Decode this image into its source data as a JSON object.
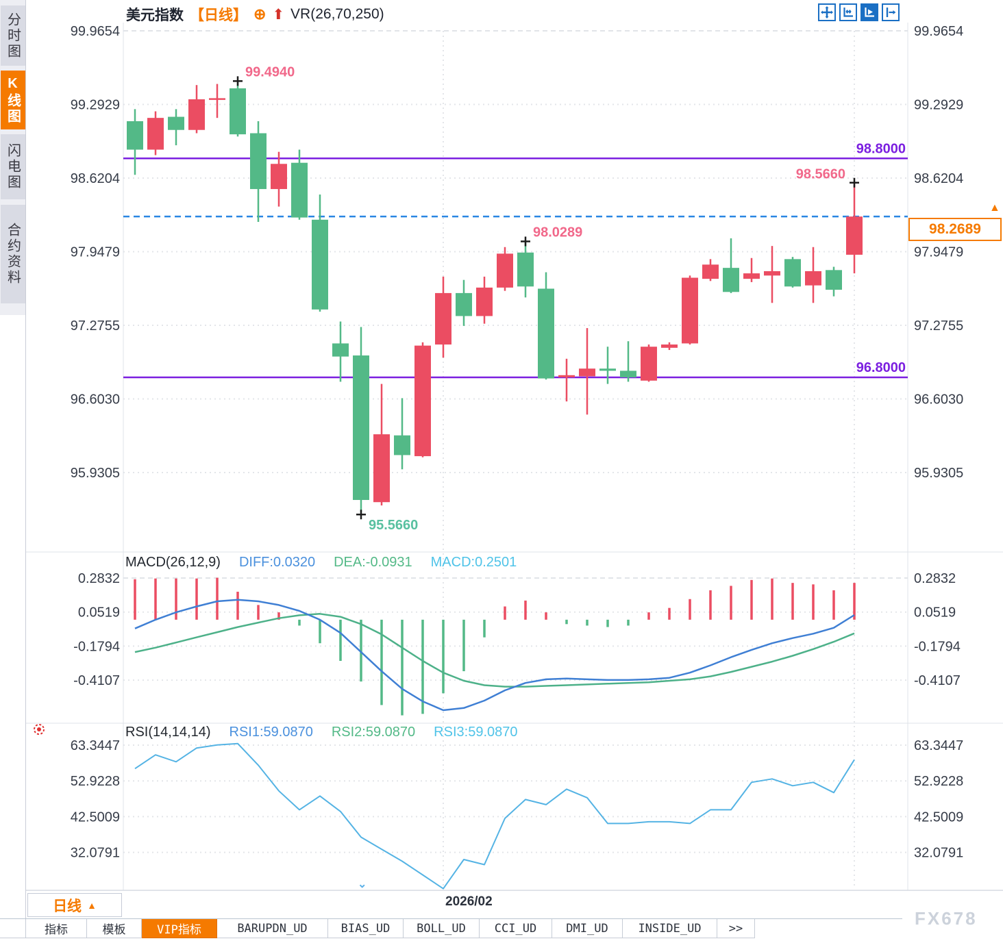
{
  "title_bar": {
    "symbol": "美元指数",
    "period_tag": "【日线】",
    "overlay_indicator": "VR(26,70,250)"
  },
  "icons": {
    "circle_plus": "⊕",
    "arrow_up": "⬆",
    "triangle_up": "▲",
    "chevron_down": "⌄"
  },
  "sidebar": {
    "items": [
      {
        "name": "time-share-chart",
        "label": "分时图",
        "active": false
      },
      {
        "name": "candlestick-chart",
        "label": "K线图",
        "active": true
      },
      {
        "name": "flash-chart",
        "label": "闪电图",
        "active": false
      },
      {
        "name": "contract-info",
        "label": "合约资料",
        "active": false
      }
    ]
  },
  "toolbar": {
    "icons": [
      {
        "name": "pan-crosshair",
        "active": false
      },
      {
        "name": "x-axis-scale",
        "active": false
      },
      {
        "name": "y-axis-play",
        "active": true
      },
      {
        "name": "pan-right",
        "active": false
      }
    ]
  },
  "price_marker": {
    "value": "98.2689"
  },
  "period_selector": {
    "label": "日线"
  },
  "tabs": [
    {
      "name": "indicators",
      "label": "指标",
      "active": false
    },
    {
      "name": "templates",
      "label": "模板",
      "active": false
    },
    {
      "name": "vip-indicators",
      "label": "VIP指标",
      "active": true
    },
    {
      "name": "barupdn-ud",
      "label": "BARUPDN_UD",
      "active": false
    },
    {
      "name": "bias-ud",
      "label": "BIAS_UD",
      "active": false
    },
    {
      "name": "boll-ud",
      "label": "BOLL_UD",
      "active": false
    },
    {
      "name": "cci-ud",
      "label": "CCI_UD",
      "active": false
    },
    {
      "name": "dmi-ud",
      "label": "DMI_UD",
      "active": false
    },
    {
      "name": "inside-ud",
      "label": "INSIDE_UD",
      "active": false
    },
    {
      "name": "more",
      "label": ">>",
      "active": false
    }
  ],
  "watermark": "FX678",
  "colors": {
    "up": "#eb4d62",
    "down": "#53b987",
    "purple": "#7b1fe0",
    "dashed_blue": "#2a86e3",
    "orange": "#f57a00",
    "pink_label": "#f1688a",
    "green_label": "#58c0a0",
    "diff_line": "#3f7fd4",
    "dea_line": "#4db189",
    "rsi_line": "#54b3e4",
    "marker": "#1c1c1c"
  },
  "chart_data": {
    "type": "candlestick",
    "title": "美元指数 日线 (US Dollar Index, daily)",
    "date_label": "2026/02",
    "x_gridline_candles": [
      15,
      35
    ],
    "main": {
      "y_ticks": [
        99.9654,
        99.2929,
        98.6204,
        97.9479,
        97.2755,
        96.603,
        95.9305
      ],
      "y_tick_labels": [
        "99.9654",
        "99.2929",
        "98.6204",
        "97.9479",
        "97.2755",
        "96.6030",
        "95.9305"
      ],
      "hlines": [
        {
          "value": 98.8,
          "label": "98.8000"
        },
        {
          "value": 96.8,
          "label": "96.8000"
        }
      ],
      "current_price": 98.2689,
      "annotations": [
        {
          "text": "99.4940",
          "value": 99.494,
          "candle": 5,
          "anchor": "high",
          "placement": "above-right",
          "color_key": "pink_label"
        },
        {
          "text": "98.5660",
          "value": 98.566,
          "candle": 35,
          "anchor": "high",
          "placement": "above-left",
          "color_key": "pink_label"
        },
        {
          "text": "98.0289",
          "value": 98.0289,
          "candle": 19,
          "anchor": "high",
          "placement": "above-right",
          "color_key": "pink_label"
        },
        {
          "text": "95.5660",
          "value": 95.566,
          "candle": 11,
          "anchor": "low",
          "placement": "below-right",
          "color_key": "green_label"
        }
      ],
      "candles": [
        [
          99.14,
          99.25,
          98.65,
          98.88
        ],
        [
          98.88,
          99.23,
          98.83,
          99.17
        ],
        [
          99.18,
          99.25,
          98.92,
          99.06
        ],
        [
          99.06,
          99.47,
          99.03,
          99.34
        ],
        [
          99.34,
          99.48,
          99.17,
          99.35
        ],
        [
          99.44,
          99.494,
          99.0,
          99.02
        ],
        [
          99.03,
          99.14,
          98.22,
          98.52
        ],
        [
          98.52,
          98.86,
          98.36,
          98.75
        ],
        [
          98.76,
          98.88,
          98.24,
          98.26
        ],
        [
          98.24,
          98.47,
          97.4,
          97.42
        ],
        [
          97.11,
          97.31,
          96.76,
          96.99
        ],
        [
          97.0,
          97.26,
          95.566,
          95.68
        ],
        [
          95.66,
          96.74,
          95.63,
          96.28
        ],
        [
          96.27,
          96.61,
          95.96,
          96.09
        ],
        [
          96.08,
          97.12,
          96.07,
          97.09
        ],
        [
          97.1,
          97.72,
          96.98,
          97.57
        ],
        [
          97.57,
          97.69,
          97.27,
          97.36
        ],
        [
          97.36,
          97.72,
          97.29,
          97.62
        ],
        [
          97.62,
          97.99,
          97.59,
          97.93
        ],
        [
          97.94,
          98.029,
          97.53,
          97.63
        ],
        [
          97.61,
          97.76,
          96.78,
          96.79
        ],
        [
          96.8,
          96.97,
          96.58,
          96.82
        ],
        [
          96.81,
          97.25,
          96.46,
          96.88
        ],
        [
          96.88,
          97.08,
          96.74,
          96.86
        ],
        [
          96.86,
          97.13,
          96.76,
          96.8
        ],
        [
          96.77,
          97.1,
          96.76,
          97.08
        ],
        [
          97.07,
          97.12,
          97.05,
          97.1
        ],
        [
          97.11,
          97.73,
          97.1,
          97.71
        ],
        [
          97.7,
          97.88,
          97.68,
          97.83
        ],
        [
          97.8,
          98.07,
          97.57,
          97.58
        ],
        [
          97.7,
          97.89,
          97.67,
          97.75
        ],
        [
          97.73,
          98.0,
          97.48,
          97.77
        ],
        [
          97.88,
          97.9,
          97.62,
          97.63
        ],
        [
          97.64,
          97.99,
          97.48,
          97.77
        ],
        [
          97.78,
          97.81,
          97.54,
          97.6
        ],
        [
          97.92,
          98.566,
          97.75,
          98.2689
        ]
      ]
    },
    "macd": {
      "label": "MACD(26,12,9)",
      "diff_label": "DIFF:0.0320",
      "dea_label": "DEA:-0.0931",
      "macd_label": "MACD:0.2501",
      "y_ticks": [
        0.2832,
        0.0519,
        -0.1794,
        -0.4107
      ],
      "y_tick_labels": [
        "0.2832",
        "0.0519",
        "-0.1794",
        "-0.4107"
      ],
      "diff": [
        -0.06,
        0.0,
        0.05,
        0.09,
        0.125,
        0.135,
        0.125,
        0.1,
        0.06,
        0.0,
        -0.09,
        -0.22,
        -0.35,
        -0.47,
        -0.555,
        -0.615,
        -0.6,
        -0.55,
        -0.48,
        -0.43,
        -0.405,
        -0.4,
        -0.405,
        -0.41,
        -0.41,
        -0.405,
        -0.395,
        -0.36,
        -0.31,
        -0.255,
        -0.205,
        -0.16,
        -0.125,
        -0.095,
        -0.055,
        0.032
      ],
      "dea": [
        -0.22,
        -0.19,
        -0.155,
        -0.12,
        -0.085,
        -0.05,
        -0.02,
        0.01,
        0.03,
        0.04,
        0.02,
        -0.03,
        -0.1,
        -0.19,
        -0.28,
        -0.36,
        -0.415,
        -0.445,
        -0.455,
        -0.455,
        -0.45,
        -0.445,
        -0.44,
        -0.435,
        -0.43,
        -0.425,
        -0.415,
        -0.405,
        -0.385,
        -0.355,
        -0.32,
        -0.285,
        -0.245,
        -0.2,
        -0.15,
        -0.093
      ],
      "hist": [
        0.275,
        0.28,
        0.28,
        0.28,
        0.285,
        0.19,
        0.1,
        0.05,
        -0.04,
        -0.16,
        -0.28,
        -0.42,
        -0.58,
        -0.65,
        -0.64,
        -0.5,
        -0.35,
        -0.12,
        0.09,
        0.13,
        0.05,
        -0.03,
        -0.04,
        -0.05,
        -0.04,
        0.05,
        0.08,
        0.14,
        0.2,
        0.23,
        0.27,
        0.28,
        0.25,
        0.24,
        0.2,
        0.25
      ]
    },
    "rsi": {
      "label": "RSI(14,14,14)",
      "rsi1_label": "RSI1:59.0870",
      "rsi2_label": "RSI2:59.0870",
      "rsi3_label": "RSI3:59.0870",
      "y_ticks": [
        63.3447,
        52.9228,
        42.5009,
        32.0791
      ],
      "y_tick_labels": [
        "63.3447",
        "52.9228",
        "42.5009",
        "32.0791"
      ],
      "values": [
        56.5,
        60.5,
        58.5,
        62.5,
        63.4,
        63.8,
        57.5,
        50.0,
        44.5,
        48.5,
        44.0,
        36.5,
        33.0,
        29.5,
        25.5,
        21.5,
        30.0,
        28.5,
        42.0,
        47.5,
        46.0,
        50.5,
        48.0,
        40.5,
        40.5,
        41.0,
        41.0,
        40.5,
        44.5,
        44.5,
        52.5,
        53.5,
        51.5,
        52.5,
        49.5,
        59.087
      ]
    }
  }
}
